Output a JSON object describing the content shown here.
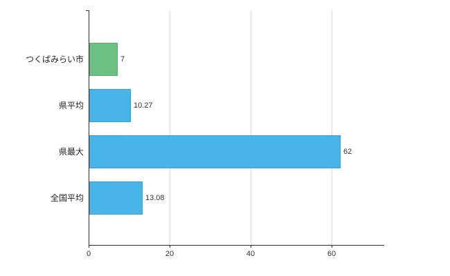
{
  "chart_data": {
    "type": "bar",
    "orientation": "horizontal",
    "title": "",
    "xlabel": "",
    "ylabel": "",
    "categories": [
      "つくばみらい市",
      "県平均",
      "県最大",
      "全国平均"
    ],
    "values": [
      7,
      10.27,
      62,
      13.08
    ],
    "value_labels": [
      "7",
      "10.27",
      "62",
      "13.08"
    ],
    "bar_colors": [
      "#6cc182",
      "#49b4e8",
      "#49b4e8",
      "#49b4e8"
    ],
    "bar_border_colors": [
      "#58ab6e",
      "#379fd4",
      "#379fd4",
      "#379fd4"
    ],
    "x_ticks": [
      0,
      20,
      40,
      60
    ],
    "xlim": [
      0,
      73
    ],
    "grid": true,
    "legend": false,
    "background_color": "#ffffff",
    "axis_color": "#2b2b2b",
    "gridline_color": "#dcdcdc"
  }
}
